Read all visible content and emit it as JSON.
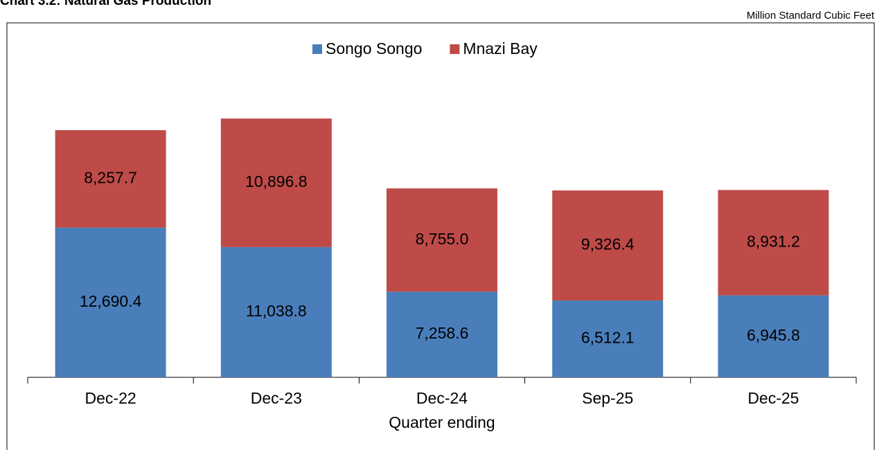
{
  "chart_data": {
    "type": "stacked-bar",
    "title": "Chart 3.2: Natural Gas Production",
    "subtitle": "Million Standard Cubic Feet",
    "x_label": "Quarter ending",
    "categories": [
      "Dec-22",
      "Dec-23",
      "Dec-24",
      "Sep-25",
      "Dec-25"
    ],
    "series": [
      {
        "name": "Songo Songo",
        "color": "#4a7ebb",
        "values": [
          12690.4,
          11038.8,
          7258.6,
          6512.1,
          6945.8
        ],
        "value_labels": [
          "12,690.4",
          "11,038.8",
          "7,258.6",
          "6,512.1",
          "6,945.8"
        ]
      },
      {
        "name": "Mnazi Bay",
        "color": "#be4b48",
        "values": [
          8257.7,
          10896.8,
          8755.0,
          9326.4,
          8931.2
        ],
        "value_labels": [
          "8,257.7",
          "10,896.8",
          "8,755.0",
          "9,326.4",
          "8,931.2"
        ]
      }
    ],
    "ylim": [
      0,
      25000
    ],
    "legend": "top"
  }
}
